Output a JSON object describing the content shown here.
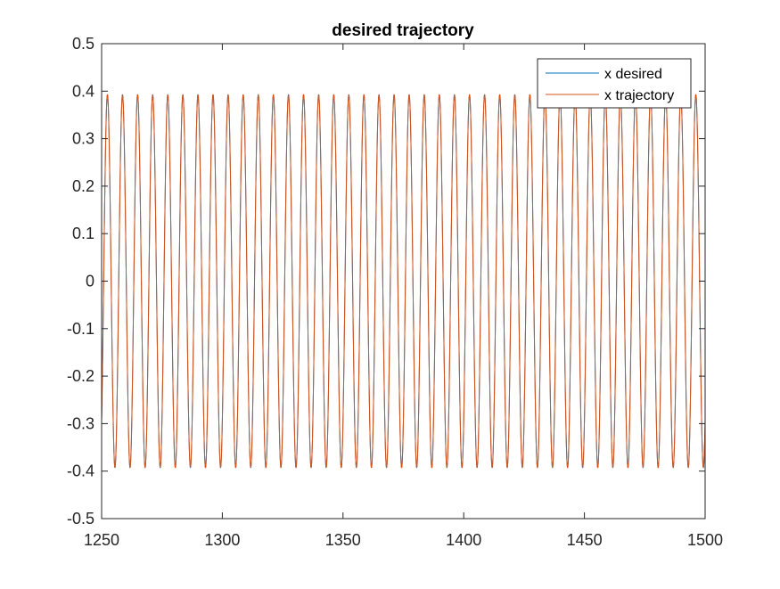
{
  "chart_data": {
    "type": "line",
    "title": "desired trajectory",
    "xlabel": "",
    "ylabel": "",
    "xlim": [
      1250,
      1500
    ],
    "ylim": [
      -0.5,
      0.5
    ],
    "x_ticks": [
      1250,
      1300,
      1350,
      1400,
      1450,
      1500
    ],
    "x_tick_labels": [
      "1250",
      "1300",
      "1350",
      "1400",
      "1450",
      "1500"
    ],
    "y_ticks": [
      -0.5,
      -0.4,
      -0.3,
      -0.2,
      -0.1,
      0,
      0.1,
      0.2,
      0.3,
      0.4,
      0.5
    ],
    "y_tick_labels": [
      "-0.5",
      "-0.4",
      "-0.3",
      "-0.2",
      "-0.1",
      "0",
      "0.1",
      "0.2",
      "0.3",
      "0.4",
      "0.5"
    ],
    "grid": false,
    "legend_position": "top-right",
    "series": [
      {
        "name": "x desired",
        "color": "#0072BD",
        "form": "sinusoid",
        "amplitude": 0.393,
        "period": 6.25,
        "phase_x": 1252.4
      },
      {
        "name": "x trajectory",
        "color": "#D95319",
        "form": "sinusoid",
        "amplitude": 0.393,
        "period": 6.25,
        "phase_x": 1252.4
      }
    ]
  }
}
